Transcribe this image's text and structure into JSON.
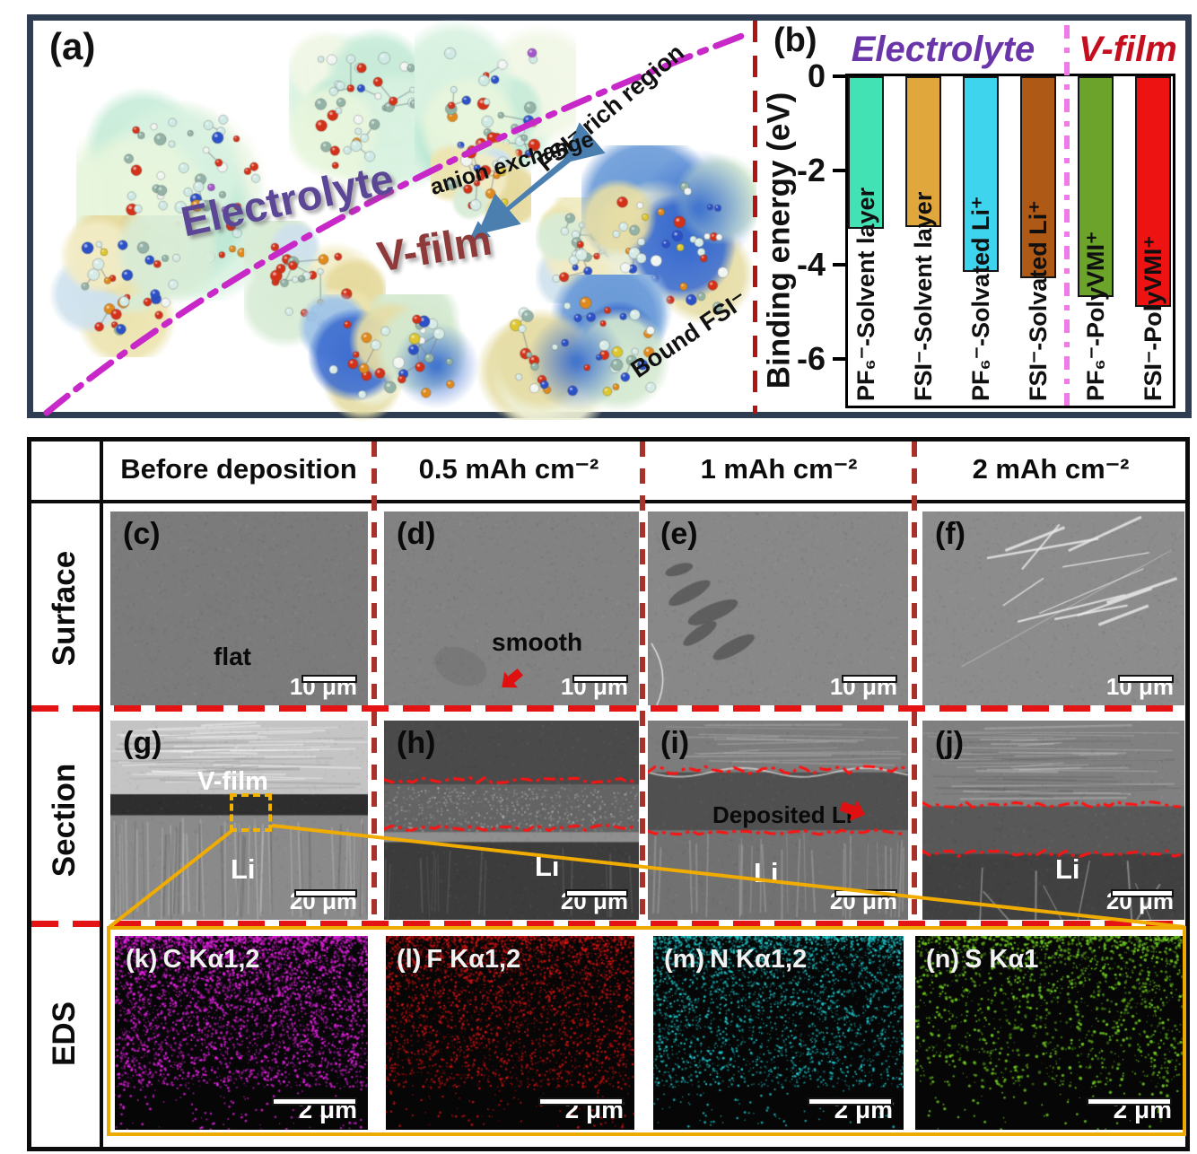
{
  "panel_a": {
    "tag": "(a)",
    "electrolyte_label": "Electrolyte",
    "vfilm_label": "V-film",
    "anion_exchange": "anion exchange",
    "fsi_rich_region": "FSI⁻ rich region",
    "bound_fsi": "Bound FSI⁻",
    "electrolyte_color": "#5c4797",
    "vfilm_color": "#8e3a3a"
  },
  "panel_b": {
    "tag": "(b)",
    "electrolyte_header": "Electrolyte",
    "vfilm_header": "V-film",
    "electrolyte_color": "#6a35a8",
    "vfilm_color": "#c60f1e"
  },
  "chart_data": {
    "type": "bar",
    "title": "",
    "xlabel": "",
    "ylabel": "Binding energy (eV)",
    "categories": [
      "PF₆⁻-Solvent layer",
      "FSI⁻-Solvent layer",
      "PF₆⁻-Solvated Li⁺",
      "FSI⁻-Solvated Li⁺",
      "PF₆⁻-PolyVMI⁺",
      "FSI⁻-PolyVMI⁺"
    ],
    "values": [
      -3.25,
      -3.2,
      -4.15,
      -4.3,
      -4.7,
      -4.9
    ],
    "bar_colors": [
      "#43e2b5",
      "#e0a83c",
      "#3ed4ee",
      "#ae5a16",
      "#6ba32b",
      "#ee1313"
    ],
    "groups": [
      "Electrolyte",
      "Electrolyte",
      "Electrolyte",
      "Electrolyte",
      "V-film",
      "V-film"
    ],
    "yticks": [
      0,
      -2,
      -4,
      -6
    ],
    "ylim": [
      -7,
      0
    ],
    "grid": false,
    "legend": null
  },
  "table": {
    "column_headers": [
      "Before deposition",
      "0.5 mAh cm⁻²",
      "1 mAh cm⁻²",
      "2 mAh cm⁻²"
    ],
    "row_headers": [
      "Surface",
      "Section",
      "EDS"
    ],
    "surface_cells": [
      {
        "tag": "(c)",
        "note": "flat",
        "scalebar": "10 μm"
      },
      {
        "tag": "(d)",
        "note": "smooth",
        "scalebar": "10 μm"
      },
      {
        "tag": "(e)",
        "note": "",
        "scalebar": "10 μm"
      },
      {
        "tag": "(f)",
        "note": "",
        "scalebar": "10 μm"
      }
    ],
    "section_cells": [
      {
        "tag": "(g)",
        "film_note": "V-film",
        "li_note": "Li",
        "note": "",
        "scalebar": "20 μm"
      },
      {
        "tag": "(h)",
        "film_note": "",
        "li_note": "Li",
        "note": "",
        "scalebar": "20 μm"
      },
      {
        "tag": "(i)",
        "film_note": "",
        "li_note": "Li",
        "note": "Deposited Li",
        "scalebar": "20 μm"
      },
      {
        "tag": "(j)",
        "film_note": "",
        "li_note": "Li",
        "note": "",
        "scalebar": "20 μm"
      }
    ],
    "eds_cells": [
      {
        "tag": "(k)",
        "element_line": "C Kα1,2",
        "scalebar": "2 μm",
        "dot_color": "#e020dd"
      },
      {
        "tag": "(l)",
        "element_line": "F Kα1,2",
        "scalebar": "2 μm",
        "dot_color": "#d41212"
      },
      {
        "tag": "(m)",
        "element_line": "N Kα1,2",
        "scalebar": "2 μm",
        "dot_color": "#1ec9ce"
      },
      {
        "tag": "(n)",
        "element_line": "S Kα1",
        "scalebar": "2 μm",
        "dot_color": "#6fce1f"
      }
    ]
  }
}
